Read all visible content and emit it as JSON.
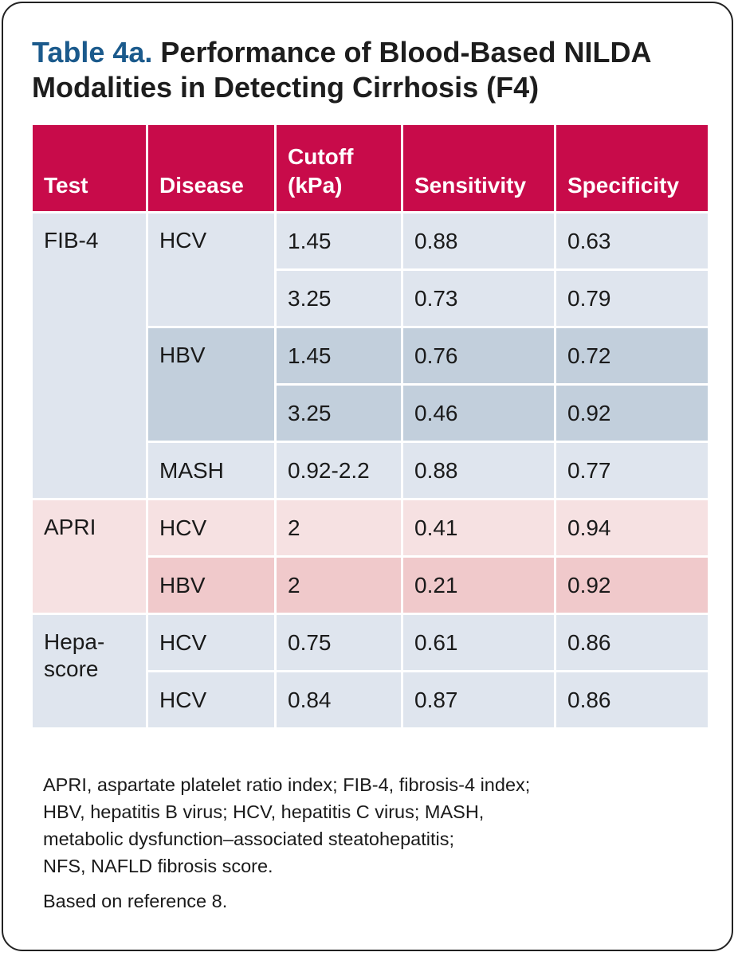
{
  "title": {
    "lead": "Table 4a.",
    "text": "Performance of Blood-Based NILDA Modalities in Detecting Cirrhosis (F4)"
  },
  "headers": {
    "test": "Test",
    "disease": "Disease",
    "cutoff_line1": "Cutoff",
    "cutoff_line2": "(kPa)",
    "sensitivity": "Sensitivity",
    "specificity": "Specificity"
  },
  "groups": {
    "fib4": {
      "test": "FIB-4",
      "hcv": {
        "disease": "HCV",
        "rows": [
          {
            "cutoff": "1.45",
            "sensitivity": "0.88",
            "specificity": "0.63"
          },
          {
            "cutoff": "3.25",
            "sensitivity": "0.73",
            "specificity": "0.79"
          }
        ]
      },
      "hbv": {
        "disease": "HBV",
        "rows": [
          {
            "cutoff": "1.45",
            "sensitivity": "0.76",
            "specificity": "0.72"
          },
          {
            "cutoff": "3.25",
            "sensitivity": "0.46",
            "specificity": "0.92"
          }
        ]
      },
      "mash": {
        "disease": "MASH",
        "rows": [
          {
            "cutoff": "0.92-2.2",
            "sensitivity": "0.88",
            "specificity": "0.77"
          }
        ]
      }
    },
    "apri": {
      "test": "APRI",
      "rows": [
        {
          "disease": "HCV",
          "cutoff": "2",
          "sensitivity": "0.41",
          "specificity": "0.94"
        },
        {
          "disease": "HBV",
          "cutoff": "2",
          "sensitivity": "0.21",
          "specificity": "0.92"
        }
      ]
    },
    "hepascore": {
      "test_line1": "Hepa-",
      "test_line2": "score",
      "rows": [
        {
          "disease": "HCV",
          "cutoff": "0.75",
          "sensitivity": "0.61",
          "specificity": "0.86"
        },
        {
          "disease": "HCV",
          "cutoff": "0.84",
          "sensitivity": "0.87",
          "specificity": "0.86"
        }
      ]
    }
  },
  "footnotes": {
    "abbreviations_lines": [
      "APRI, aspartate platelet ratio index; FIB-4, fibrosis-4 index;",
      "HBV, hepatitis B virus; HCV, hepatitis C virus; MASH,",
      "metabolic dysfunction–associated steatohepatitis;",
      "NFS, NAFLD fibrosis score."
    ],
    "reference": "Based on reference 8."
  },
  "colors": {
    "header_bg": "#c80b4a",
    "title_accent": "#1b5a8c",
    "blue_light": "#dfe5ee",
    "blue_dark": "#c2cfdc",
    "pink_light": "#f6e1e2",
    "pink_dark": "#f0c9cb"
  }
}
